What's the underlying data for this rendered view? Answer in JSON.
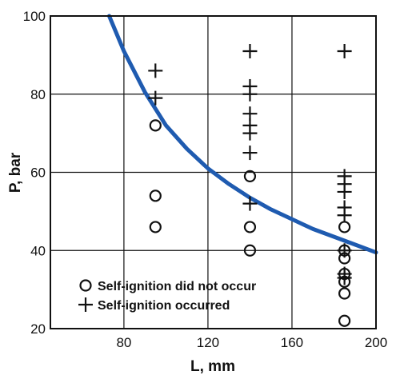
{
  "chart_data": {
    "type": "scatter",
    "title": "",
    "xlabel": "L, mm",
    "ylabel": "P, bar",
    "xlim": [
      45,
      200
    ],
    "ylim": [
      20,
      100
    ],
    "x_ticks": [
      80,
      120,
      160,
      200
    ],
    "y_ticks": [
      20,
      40,
      60,
      80,
      100
    ],
    "x_tick_labels": [
      "80",
      "120",
      "160",
      "200"
    ],
    "y_tick_labels": [
      "20",
      "40",
      "60",
      "80",
      "100"
    ],
    "grid": true,
    "legend_position": "bottom-left",
    "series": [
      {
        "name": "Self-ignition did not occur",
        "marker": "circle",
        "points": [
          [
            95,
            72
          ],
          [
            95,
            54
          ],
          [
            95,
            46
          ],
          [
            140,
            59
          ],
          [
            140,
            46
          ],
          [
            140,
            40
          ],
          [
            185,
            46
          ],
          [
            185,
            40
          ],
          [
            185,
            38
          ],
          [
            185,
            34
          ],
          [
            185,
            32
          ],
          [
            185,
            29
          ],
          [
            185,
            22
          ]
        ]
      },
      {
        "name": "Self-ignition occurred",
        "marker": "plus",
        "points": [
          [
            95,
            86
          ],
          [
            95,
            79
          ],
          [
            140,
            91
          ],
          [
            140,
            82
          ],
          [
            140,
            80
          ],
          [
            140,
            75
          ],
          [
            140,
            72
          ],
          [
            140,
            70
          ],
          [
            140,
            65
          ],
          [
            140,
            52
          ],
          [
            185,
            91
          ],
          [
            185,
            59
          ],
          [
            185,
            57
          ],
          [
            185,
            55
          ],
          [
            185,
            51
          ],
          [
            185,
            49
          ],
          [
            185,
            40
          ],
          [
            185,
            34
          ],
          [
            185,
            33
          ]
        ]
      },
      {
        "name": "",
        "type": "line",
        "color": "#1f5bb0",
        "points": [
          [
            73,
            100
          ],
          [
            80,
            91
          ],
          [
            90,
            80.5
          ],
          [
            100,
            72
          ],
          [
            110,
            66
          ],
          [
            120,
            61
          ],
          [
            130,
            57
          ],
          [
            140,
            53.5
          ],
          [
            150,
            50.5
          ],
          [
            160,
            48
          ],
          [
            170,
            45.5
          ],
          [
            180,
            43.5
          ],
          [
            190,
            41.5
          ],
          [
            200,
            39.5
          ]
        ]
      }
    ]
  }
}
